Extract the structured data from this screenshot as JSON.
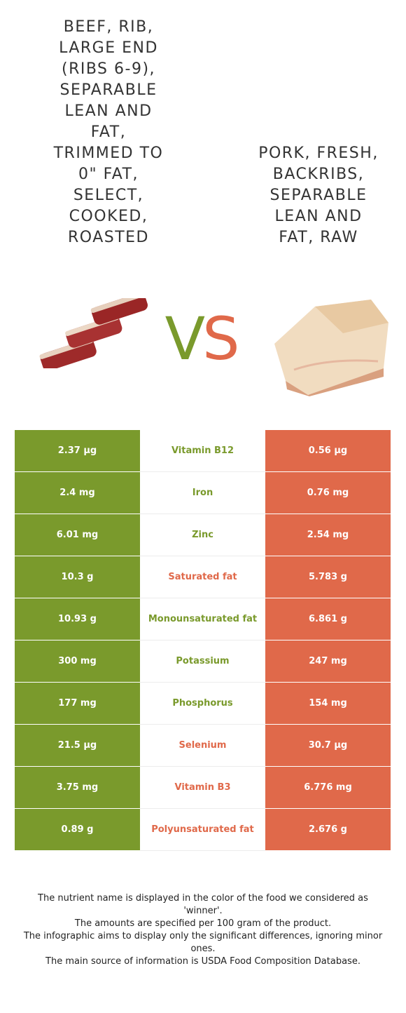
{
  "left_food": {
    "title": "BEEF, RIB, LARGE END (RIBS 6-9), SEPARABLE LEAN AND FAT, TRIMMED TO 0\" FAT, SELECT, COOKED, ROASTED",
    "lines": [
      "BEEF, RIB,",
      "LARGE END",
      "(RIBS 6-9),",
      "SEPARABLE",
      "LEAN AND",
      "FAT,",
      "TRIMMED TO",
      "0\" FAT,",
      "SELECT,",
      "COOKED,",
      "ROASTED"
    ],
    "color": "#7a9a2c"
  },
  "right_food": {
    "title": "PORK, FRESH, BACKRIBS, SEPARABLE LEAN AND FAT, RAW",
    "lines": [
      "PORK, FRESH,",
      "BACKRIBS,",
      "SEPARABLE",
      "LEAN AND",
      "FAT, RAW"
    ],
    "color": "#e0694a"
  },
  "vs": {
    "v": "V",
    "s": "S"
  },
  "rows": [
    {
      "left": "2.37 µg",
      "name": "Vitamin B12",
      "right": "0.56 µg",
      "winner": "left"
    },
    {
      "left": "2.4 mg",
      "name": "Iron",
      "right": "0.76 mg",
      "winner": "left"
    },
    {
      "left": "6.01 mg",
      "name": "Zinc",
      "right": "2.54 mg",
      "winner": "left"
    },
    {
      "left": "10.3 g",
      "name": "Saturated fat",
      "right": "5.783 g",
      "winner": "right"
    },
    {
      "left": "10.93 g",
      "name": "Monounsaturated fat",
      "right": "6.861 g",
      "winner": "left"
    },
    {
      "left": "300 mg",
      "name": "Potassium",
      "right": "247 mg",
      "winner": "left"
    },
    {
      "left": "177 mg",
      "name": "Phosphorus",
      "right": "154 mg",
      "winner": "left"
    },
    {
      "left": "21.5 µg",
      "name": "Selenium",
      "right": "30.7 µg",
      "winner": "right"
    },
    {
      "left": "3.75 mg",
      "name": "Vitamin B3",
      "right": "6.776 mg",
      "winner": "right"
    },
    {
      "left": "0.89 g",
      "name": "Polyunsaturated fat",
      "right": "2.676 g",
      "winner": "right"
    }
  ],
  "footer": [
    "The nutrient name is displayed in the color of the food we considered as 'winner'.",
    "The amounts are specified per 100 gram of the product.",
    "The infographic aims to display only the significant differences, ignoring minor ones.",
    "The main source of information is USDA Food Composition Database."
  ]
}
